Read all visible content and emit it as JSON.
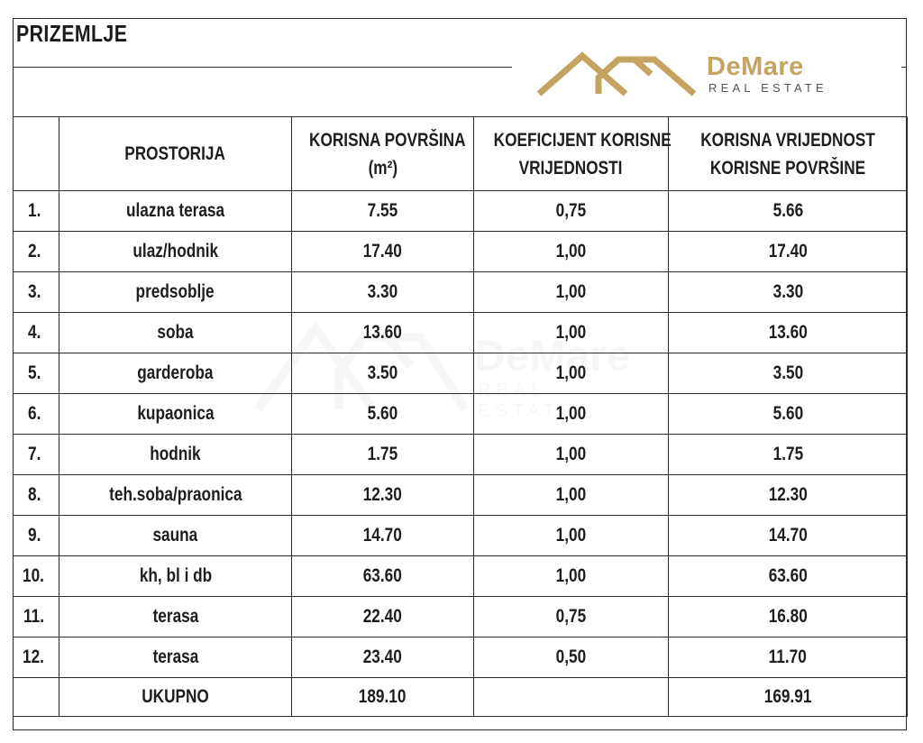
{
  "header": {
    "title": "PRIZEMLJE",
    "logo": {
      "brand": "DeMare",
      "subtitle": "REAL ESTATE",
      "icon": "house-roof-logo-icon",
      "color": "#c5a360"
    }
  },
  "table": {
    "columns": {
      "index": "",
      "room": "PROSTORIJA",
      "area_line1": "KORISNA POVRŠINA",
      "area_line2": "(m²)",
      "coef_line1": "KOEFICIJENT KORISNE",
      "coef_line2": "VRIJEDNOSTI",
      "value_line1": "KORISNA VRIJEDNOST",
      "value_line2": "KORISNE POVRŠINE"
    },
    "rows": [
      {
        "no": "1.",
        "room": "ulazna terasa",
        "area": "7.55",
        "coef": "0,75",
        "value": "5.66"
      },
      {
        "no": "2.",
        "room": "ulaz/hodnik",
        "area": "17.40",
        "coef": "1,00",
        "value": "17.40"
      },
      {
        "no": "3.",
        "room": "predsoblje",
        "area": "3.30",
        "coef": "1,00",
        "value": "3.30"
      },
      {
        "no": "4.",
        "room": "soba",
        "area": "13.60",
        "coef": "1,00",
        "value": "13.60"
      },
      {
        "no": "5.",
        "room": "garderoba",
        "area": "3.50",
        "coef": "1,00",
        "value": "3.50"
      },
      {
        "no": "6.",
        "room": "kupaonica",
        "area": "5.60",
        "coef": "1,00",
        "value": "5.60"
      },
      {
        "no": "7.",
        "room": "hodnik",
        "area": "1.75",
        "coef": "1,00",
        "value": "1.75"
      },
      {
        "no": "8.",
        "room": "teh.soba/praonica",
        "area": "12.30",
        "coef": "1,00",
        "value": "12.30"
      },
      {
        "no": "9.",
        "room": "sauna",
        "area": "14.70",
        "coef": "1,00",
        "value": "14.70"
      },
      {
        "no": "10.",
        "room": "kh, bl i db",
        "area": "63.60",
        "coef": "1,00",
        "value": "63.60"
      },
      {
        "no": "11.",
        "room": "terasa",
        "area": "22.40",
        "coef": "0,75",
        "value": "16.80"
      },
      {
        "no": "12.",
        "room": "terasa",
        "area": "23.40",
        "coef": "0,50",
        "value": "11.70"
      }
    ],
    "total": {
      "label": "UKUPNO",
      "area": "189.10",
      "coef": "",
      "value": "169.91"
    }
  }
}
